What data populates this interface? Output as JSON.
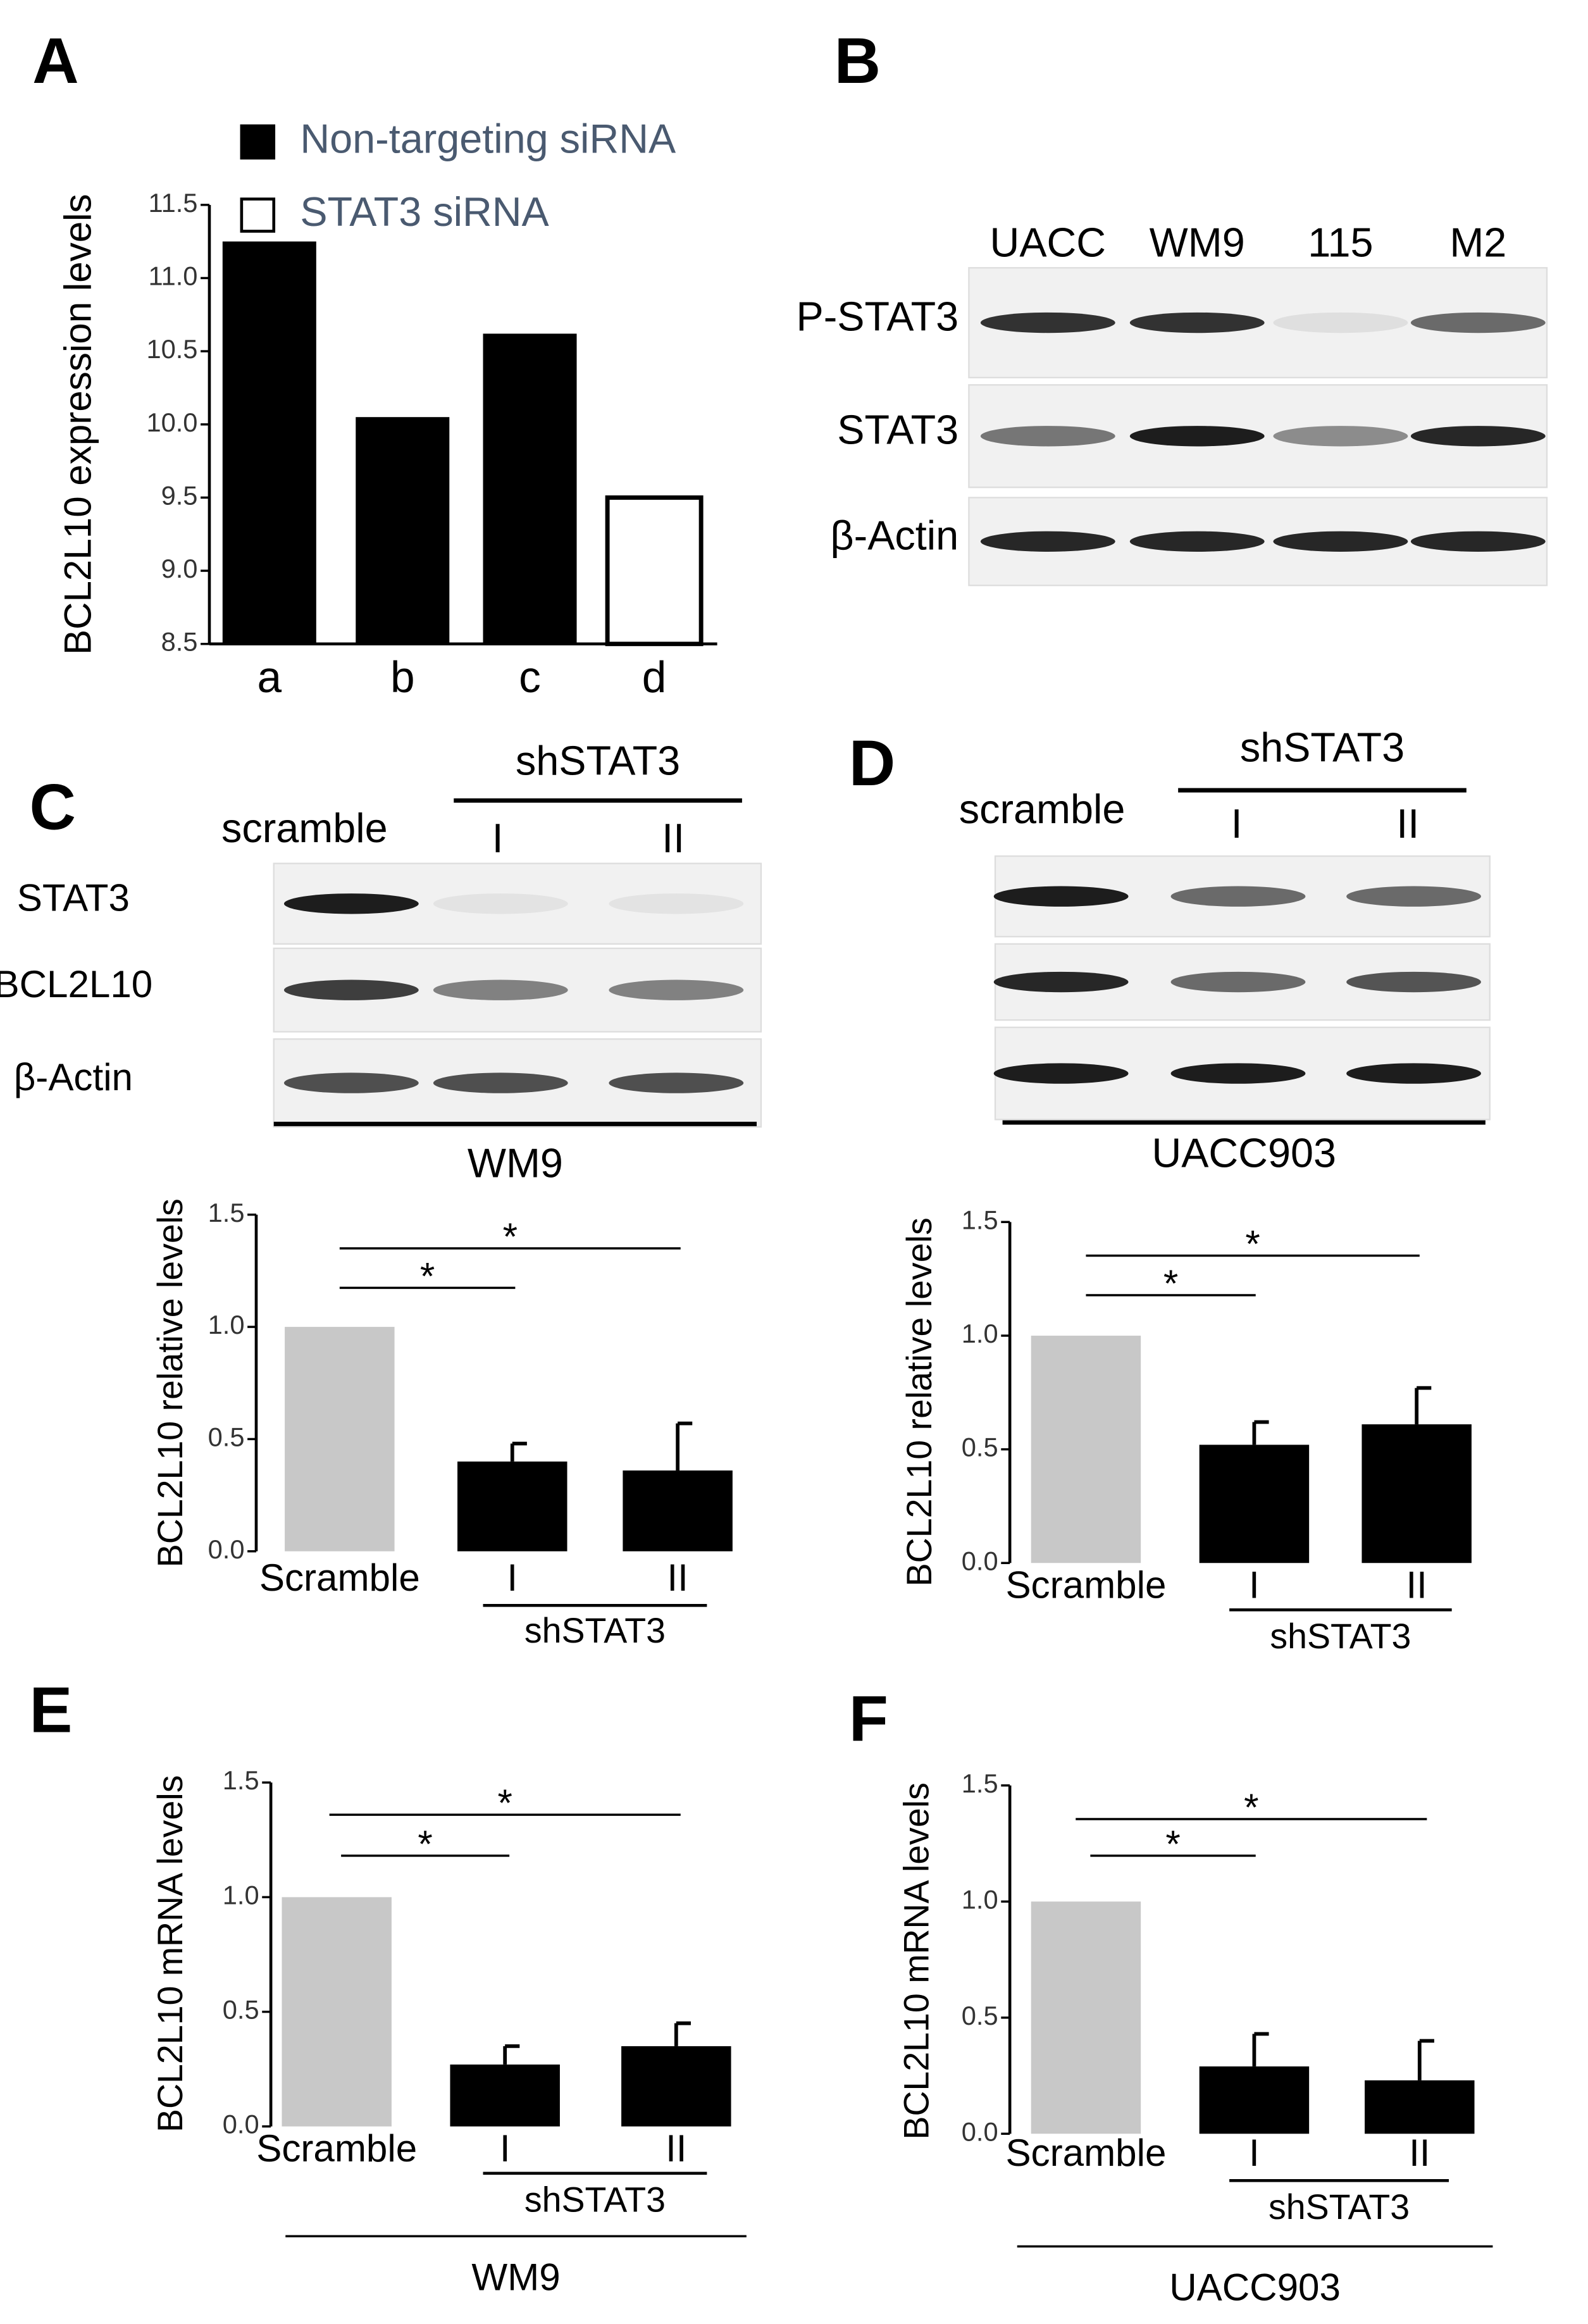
{
  "chart_data": [
    {
      "type": "bar",
      "panel": "A",
      "y_label": "BCL2L10 expression levels",
      "categories": [
        "a",
        "b",
        "c",
        "d"
      ],
      "series": [
        {
          "name": "Non-targeting siRNA",
          "color": "#000000",
          "values": [
            11.25,
            10.05,
            10.62,
            null
          ]
        },
        {
          "name": "STAT3 siRNA",
          "color": "#ffffff",
          "values": [
            null,
            null,
            null,
            9.5
          ]
        }
      ],
      "ylim": [
        8.5,
        11.5
      ],
      "yticks": [
        8.5,
        {
          "value": 9,
          "label": "9.0"
        },
        9.5,
        {
          "value": 10,
          "label": "10.0"
        },
        10.5,
        {
          "value": 11,
          "label": "11.0"
        },
        11.5
      ]
    },
    {
      "type": "bar",
      "y_label": "BCL2L10 relative levels",
      "categories": [
        "Scramble",
        "I",
        "II"
      ],
      "values": [
        1,
        0.4,
        0.36
      ],
      "errors": [
        null,
        0.08,
        0.21
      ],
      "colors": [
        "#c8c8c8",
        "#000000",
        "#000000"
      ],
      "group_label": "shSTAT3",
      "annotations": [
        "*",
        "*"
      ],
      "ylim": [
        0,
        1.5
      ],
      "yticks": [
        {
          "value": 0,
          "label": "0.0"
        },
        0.5,
        {
          "value": 1,
          "label": "1.0"
        },
        1.5
      ]
    },
    {
      "type": "bar",
      "y_label": "BCL2L10 relative levels",
      "categories": [
        "Scramble",
        "I",
        "II"
      ],
      "values": [
        1,
        0.52,
        0.61
      ],
      "errors": [
        null,
        0.1,
        0.16
      ],
      "colors": [
        "#c8c8c8",
        "#000000",
        "#000000"
      ],
      "group_label": "shSTAT3",
      "annotations": [
        "*",
        "*"
      ],
      "ylim": [
        0,
        1.5
      ],
      "yticks": [
        {
          "value": 0,
          "label": "0.0"
        },
        0.5,
        {
          "value": 1,
          "label": "1.0"
        },
        1.5
      ]
    },
    {
      "type": "bar",
      "panel": "E",
      "y_label": "BCL2L10 mRNA levels",
      "cell_line": "WM9",
      "categories": [
        "Scramble",
        "I",
        "II"
      ],
      "values": [
        1,
        0.27,
        0.35
      ],
      "errors": [
        null,
        0.08,
        0.1
      ],
      "colors": [
        "#c8c8c8",
        "#000000",
        "#000000"
      ],
      "group_label": "shSTAT3",
      "annotations": [
        "*",
        "*"
      ],
      "ylim": [
        0,
        1.5
      ],
      "yticks": [
        {
          "value": 0,
          "label": "0.0"
        },
        0.5,
        {
          "value": 1,
          "label": "1.0"
        },
        1.5
      ]
    },
    {
      "type": "bar",
      "panel": "F",
      "y_label": "BCL2L10 mRNA levels",
      "cell_line": "UACC903",
      "categories": [
        "Scramble",
        "I",
        "II"
      ],
      "values": [
        1,
        0.29,
        0.23
      ],
      "errors": [
        null,
        0.14,
        0.17
      ],
      "colors": [
        "#c8c8c8",
        "#000000",
        "#000000"
      ],
      "group_label": "shSTAT3",
      "annotations": [
        "*",
        "*"
      ],
      "ylim": [
        0,
        1.5
      ],
      "yticks": [
        {
          "value": 0,
          "label": "0.0"
        },
        0.5,
        {
          "value": 1,
          "label": "1.0"
        },
        1.5
      ]
    }
  ],
  "blots": [
    {
      "panel": "B",
      "lanes": [
        "UACC",
        "WM9",
        "115",
        "M2"
      ],
      "rows": [
        "P-STAT3",
        "STAT3",
        "β-Actin"
      ]
    },
    {
      "panel": "C",
      "lanes": [
        "scramble",
        "I",
        "II"
      ],
      "group_label": "shSTAT3",
      "rows": [
        "STAT3",
        "BCL2L10",
        "β-Actin"
      ],
      "cell_line": "WM9"
    },
    {
      "panel": "D",
      "lanes": [
        "scramble",
        "I",
        "II"
      ],
      "group_label": "shSTAT3",
      "cell_line": "UACC903"
    }
  ]
}
